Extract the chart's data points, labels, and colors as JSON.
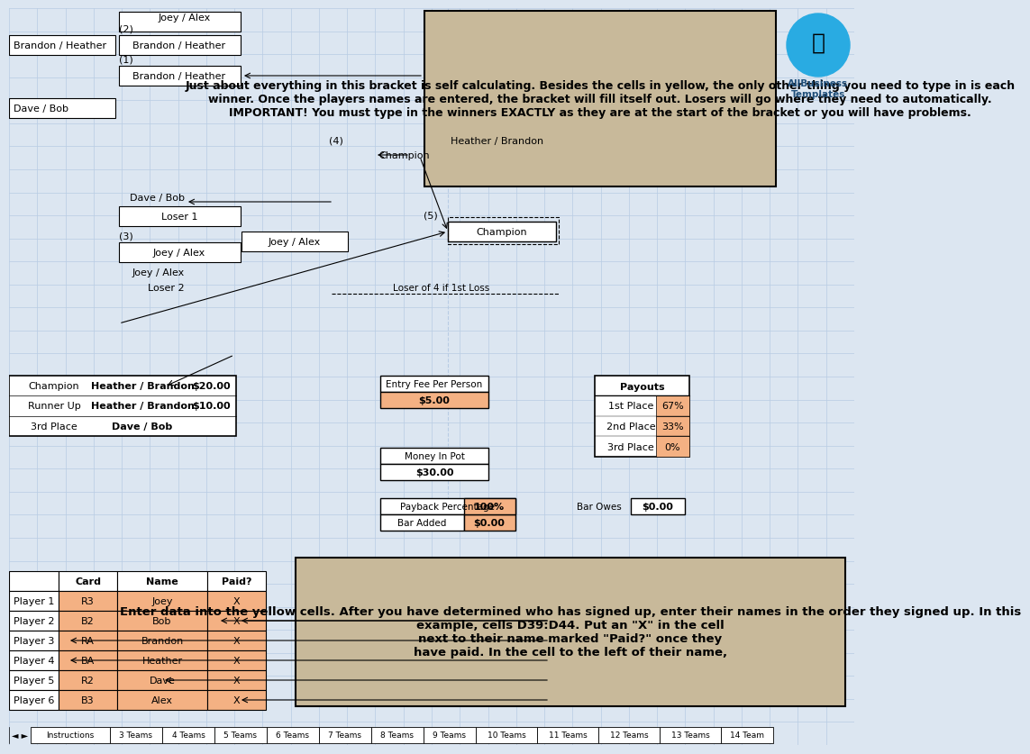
{
  "bg_color": "#dce6f1",
  "grid_color": "#b8cce4",
  "orange": "#f4b183",
  "tan": "#c8b99a",
  "white": "#ffffff",
  "black": "#000000",
  "red": "#ff0000",
  "blue_logo": "#29abe2",
  "dark_blue": "#1f4e79",
  "tabs": [
    "Instructions",
    "3 Teams",
    "4 Teams",
    "5 Teams",
    "6 Teams",
    "7 Teams",
    "8 Teams",
    "9 Teams",
    "10 Teams",
    "11 Teams",
    "12 Teams",
    "13 Teams",
    "14 Team"
  ],
  "top_note": "Just about everything in this bracket is self calculating. Besides the cells in yellow, the only other thing you need to type in is each winner. Once the players names are entered, the bracket will fill itself out. Losers will go where they need to automatically. IMPORTANT! You must type in the winners EXACTLY as they are at the start of the bracket or you will have problems.",
  "bottom_note_1": "Enter data into the yellow cells. After you have determined who has signed up, enter their ",
  "bottom_note_red1": "names",
  "bottom_note_2": " in the order they signed up. In this\nexample, cells D39:D44. Put an ",
  "bottom_note_red2": "\"X\"",
  "bottom_note_3": " in the cell\nnext to their name marked \"Paid?\" once they\nhave paid. In the cell to the left of their name,",
  "results_rows": [
    {
      "label": "Champion",
      "name": "Heather / Brandon",
      "val": "$20.00"
    },
    {
      "label": "Runner Up",
      "name": "Heather / Brandon",
      "val": "$10.00"
    },
    {
      "label": "3rd Place",
      "name": "Dave / Bob",
      "val": ""
    }
  ],
  "payout_rows": [
    {
      "label": "1st Place",
      "pct": "67%"
    },
    {
      "label": "2nd Place",
      "pct": "33%"
    },
    {
      "label": "3rd Place",
      "pct": "0%"
    }
  ],
  "player_rows": [
    {
      "player": "Player 1",
      "card": "R3",
      "name": "Joey",
      "paid": "X"
    },
    {
      "player": "Player 2",
      "card": "B2",
      "name": "Bob",
      "paid": "X"
    },
    {
      "player": "Player 3",
      "card": "RA",
      "name": "Brandon",
      "paid": "X"
    },
    {
      "player": "Player 4",
      "card": "BA",
      "name": "Heather",
      "paid": "X"
    },
    {
      "player": "Player 5",
      "card": "R2",
      "name": "Dave",
      "paid": "X"
    },
    {
      "player": "Player 6",
      "card": "B3",
      "name": "Alex",
      "paid": "X"
    }
  ]
}
